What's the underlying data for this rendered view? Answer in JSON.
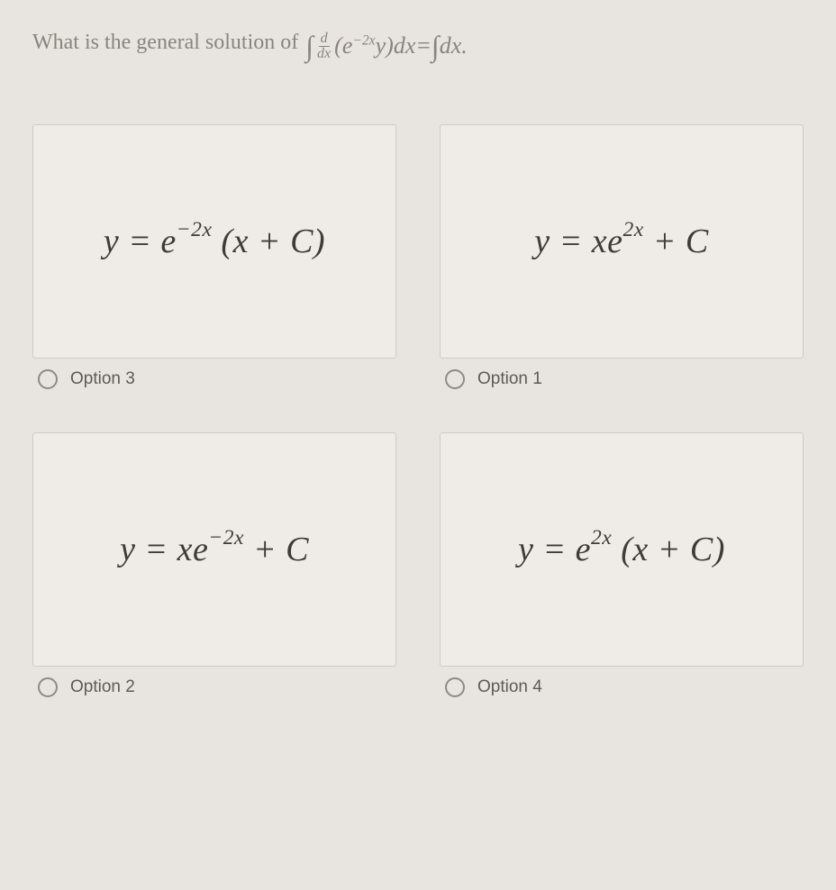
{
  "question": {
    "prompt_text": "What is the general solution of",
    "equation_prefix_integral": "∫",
    "equation_frac_num": "d",
    "equation_frac_den": "dx",
    "equation_lparen": "(",
    "equation_e": "e",
    "equation_exp": "−2x",
    "equation_y": "y",
    "equation_rparen": ")",
    "equation_dx1": "dx",
    "equation_eq": "=",
    "equation_int2": "∫",
    "equation_dx2": "dx",
    "equation_period": "."
  },
  "options": [
    {
      "label": "Option 3",
      "equation": {
        "lhs": "y = e",
        "exp": "−2x",
        "rhs_open": " (",
        "rhs_inner": "x + C",
        "rhs_close": ")"
      }
    },
    {
      "label": "Option 1",
      "equation": {
        "lhs": "y = xe",
        "exp": "2x",
        "rhs_open": " ",
        "rhs_inner": "+ C",
        "rhs_close": ""
      }
    },
    {
      "label": "Option 2",
      "equation": {
        "lhs": "y = xe",
        "exp": "−2x",
        "rhs_open": " ",
        "rhs_inner": "+ C",
        "rhs_close": ""
      }
    },
    {
      "label": "Option 4",
      "equation": {
        "lhs": "y = e",
        "exp": "2x",
        "rhs_open": " (",
        "rhs_inner": "x + C",
        "rhs_close": ")"
      }
    }
  ],
  "style": {
    "page_bg": "#e8e4df",
    "card_bg": "#efece7",
    "card_border": "#cfcac3",
    "text_muted": "#8a847d",
    "text_eq": "#3f3b37",
    "text_option": "#5f5a54",
    "radio_border": "#8f8a84",
    "question_fontsize_pt": 18,
    "equation_fontsize_pt": 28,
    "option_fontsize_pt": 14
  }
}
